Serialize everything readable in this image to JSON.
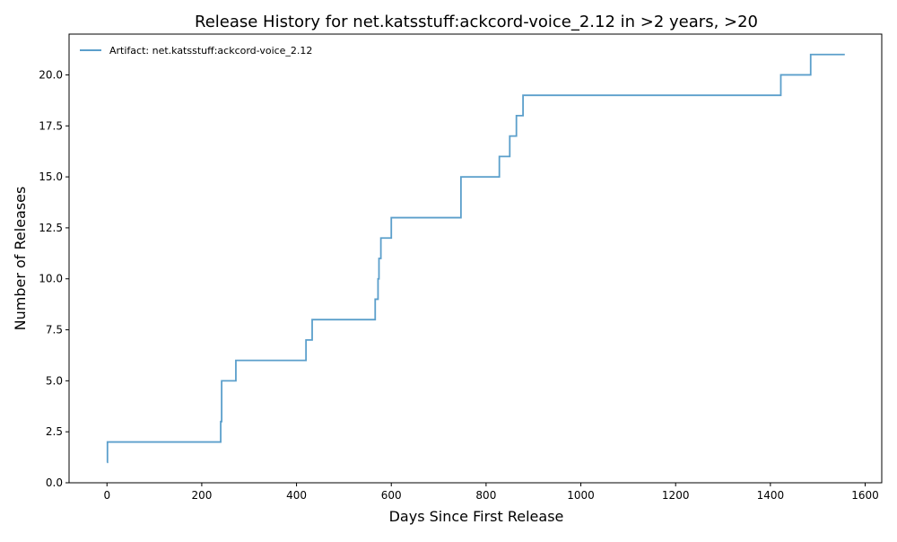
{
  "chart_data": {
    "type": "line",
    "title": "Release History for net.katsstuff:ackcord-voice_2.12 in >2 years, >20",
    "xlabel": "Days Since First Release",
    "ylabel": "Number of Releases",
    "xlim": [
      -80,
      1635
    ],
    "ylim": [
      0,
      22
    ],
    "x_ticks": [
      0,
      200,
      400,
      600,
      800,
      1000,
      1200,
      1400,
      1600
    ],
    "y_ticks": [
      0.0,
      2.5,
      5.0,
      7.5,
      10.0,
      12.5,
      15.0,
      17.5,
      20.0
    ],
    "x_tick_labels": [
      "0",
      "200",
      "400",
      "600",
      "800",
      "1000",
      "1200",
      "1400",
      "1600"
    ],
    "y_tick_labels": [
      "0.0",
      "2.5",
      "5.0",
      "7.5",
      "10.0",
      "12.5",
      "15.0",
      "17.5",
      "20.0"
    ],
    "grid": false,
    "legend_position": "top-left",
    "series": [
      {
        "name": "Artifact: net.katsstuff:ackcord-voice_2.12",
        "color": "#5b9fcb",
        "step": "post",
        "x": [
          0,
          1,
          240,
          242,
          272,
          420,
          433,
          566,
          572,
          574,
          578,
          600,
          747,
          828,
          850,
          864,
          878,
          1422,
          1485,
          1557
        ],
        "y": [
          1,
          2,
          3,
          5,
          6,
          7,
          8,
          9,
          10,
          11,
          12,
          13,
          15,
          16,
          17,
          18,
          19,
          20,
          21,
          21
        ]
      }
    ]
  }
}
